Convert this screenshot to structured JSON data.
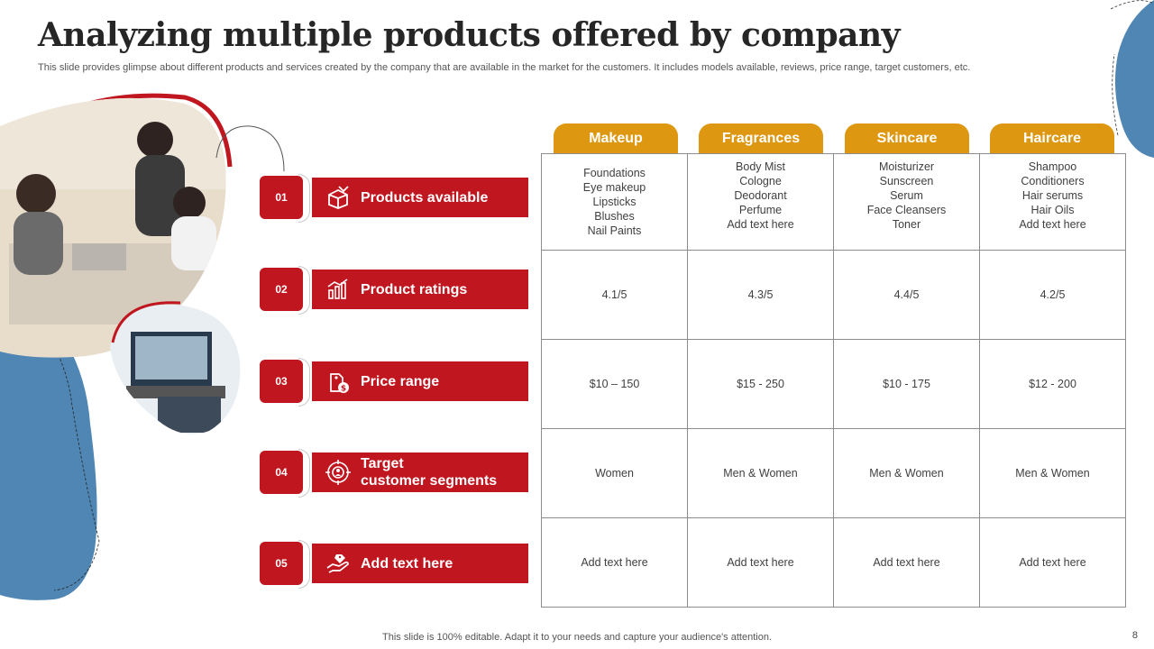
{
  "header": {
    "title": "Analyzing multiple products offered by company",
    "subtitle": "This slide provides glimpse about different products and services created by the company that are available in the market for the customers. It includes models available, reviews, price range, target customers, etc."
  },
  "colors": {
    "accent_red": "#c0161f",
    "tab_gold": "#dd9711",
    "deco_blue": "#4f86b3"
  },
  "rows": [
    {
      "num": "01",
      "label": "Products available",
      "icon": "products-box-icon"
    },
    {
      "num": "02",
      "label": "Product ratings",
      "icon": "ratings-chart-icon"
    },
    {
      "num": "03",
      "label": "Price range",
      "icon": "price-tag-icon"
    },
    {
      "num": "04",
      "label_line1": "Target",
      "label_line2": "customer segments",
      "icon": "target-customers-icon"
    },
    {
      "num": "05",
      "label": "Add text here",
      "icon": "hand-offer-icon"
    }
  ],
  "columns": [
    "Makeup",
    "Fragrances",
    "Skincare",
    "Haircare"
  ],
  "table": {
    "products": [
      [
        "Foundations",
        "Eye makeup",
        "Lipsticks",
        "Blushes",
        "Nail Paints"
      ],
      [
        "Body Mist",
        "Cologne",
        "Deodorant",
        "Perfume",
        "Add text here"
      ],
      [
        "Moisturizer",
        "Sunscreen",
        "Serum",
        "Face Cleansers",
        "Toner"
      ],
      [
        "Shampoo",
        "Conditioners",
        "Hair serums",
        "Hair Oils",
        "Add text here"
      ]
    ],
    "ratings": [
      "4.1/5",
      "4.3/5",
      "4.4/5",
      "4.2/5"
    ],
    "prices": [
      "$10 – 150",
      "$15 - 250",
      "$10 - 175",
      "$12 - 200"
    ],
    "segments": [
      "Women",
      "Men & Women",
      "Men & Women",
      "Men & Women"
    ],
    "extra": [
      "Add text here",
      "Add text here",
      "Add text here",
      "Add text here"
    ]
  },
  "footer": {
    "text": "This slide is 100% editable. Adapt it to your needs and capture your audience's attention.",
    "page": "8"
  }
}
